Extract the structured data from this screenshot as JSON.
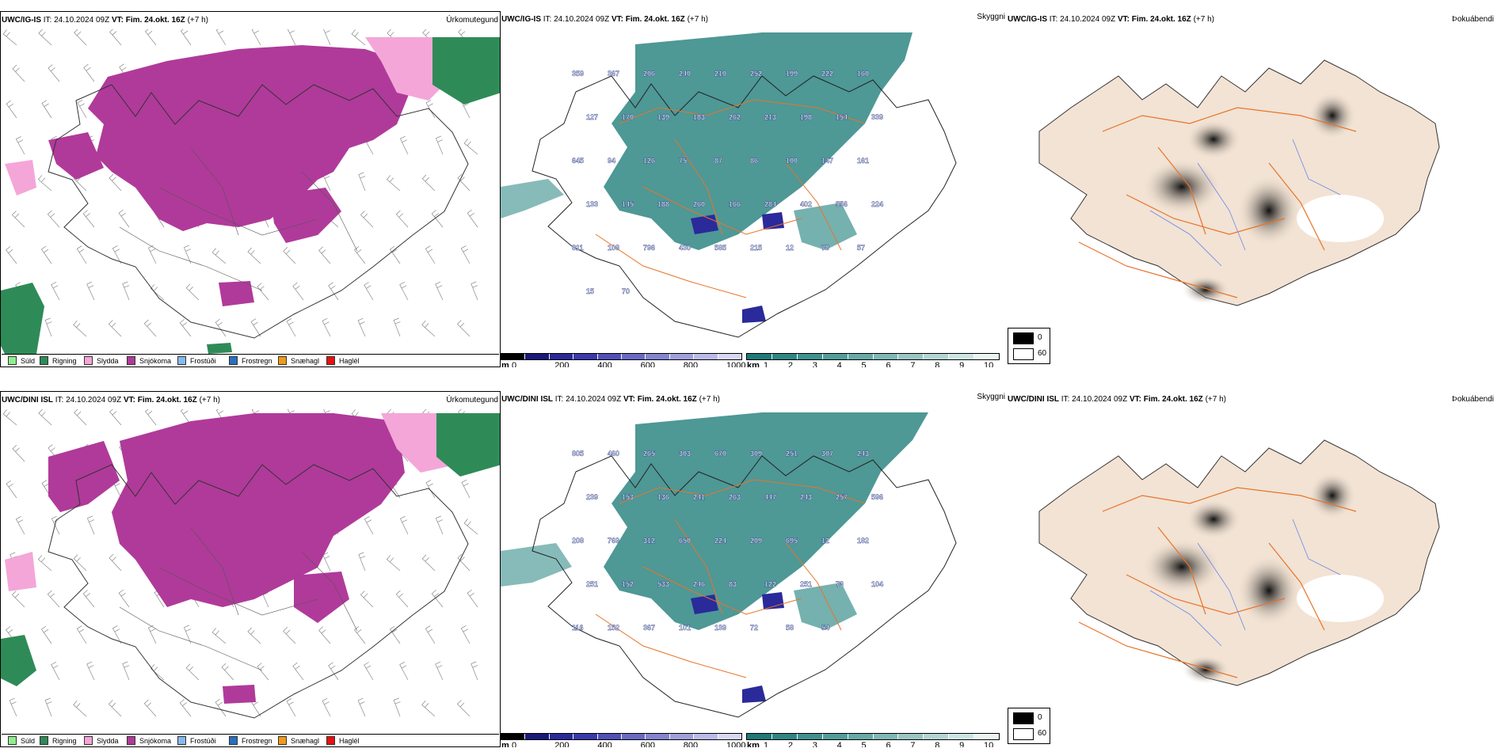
{
  "rows": [
    {
      "model": "UWC/IG-IS",
      "it_label": "IT:",
      "it_value": "24.10.2024 09Z",
      "vt_label": "VT:",
      "vt_value": "Fim. 24.okt. 16Z",
      "lead": "(+7 h)",
      "values": [
        "359",
        "367",
        "206",
        "240",
        "210",
        "252",
        "199",
        "222",
        "160",
        "127",
        "170",
        "139",
        "183",
        "262",
        "213",
        "198",
        "154",
        "339",
        "645",
        "94",
        "126",
        "75",
        "87",
        "86",
        "100",
        "147",
        "161",
        "133",
        "145",
        "188",
        "260",
        "166",
        "284",
        "402",
        "556",
        "224",
        "811",
        "108",
        "796",
        "430",
        "585",
        "215",
        "12",
        "78",
        "57",
        "15",
        "70"
      ]
    },
    {
      "model": "UWC/DINI ISL",
      "it_label": "IT:",
      "it_value": "24.10.2024 09Z",
      "vt_label": "VT:",
      "vt_value": "Fim. 24.okt. 16Z",
      "lead": "(+7 h)",
      "values": [
        "805",
        "460",
        "265",
        "303",
        "670",
        "309",
        "251",
        "307",
        "243",
        "239",
        "153",
        "136",
        "241",
        "263",
        "447",
        "243",
        "257",
        "596",
        "208",
        "769",
        "312",
        "650",
        "224",
        "209",
        "695",
        "12",
        "182",
        "251",
        "152",
        "533",
        "246",
        "83",
        "122",
        "251",
        "73",
        "104",
        "116",
        "152",
        "367",
        "101",
        "139",
        "72",
        "58",
        "54"
      ]
    }
  ],
  "panels": {
    "precip_title": "Úrkomutegund",
    "visibility_title": "Skyggni",
    "fog_title": "Þokuábendi"
  },
  "precip_legend": [
    {
      "label": "Súld",
      "color": "#90ee90"
    },
    {
      "label": "Rigning",
      "color": "#2e8b57"
    },
    {
      "label": "Slydda",
      "color": "#f4a6d8"
    },
    {
      "label": "Snjókoma",
      "color": "#b03a9a"
    },
    {
      "label": "Frostúði",
      "color": "#87b9ee"
    },
    {
      "label": "Frostregn",
      "color": "#2a6fbf"
    },
    {
      "label": "Snæhagl",
      "color": "#f09a1a"
    },
    {
      "label": "Haglél",
      "color": "#e81010"
    }
  ],
  "cloud_base_scale": {
    "unit": "m",
    "ticks": [
      "0",
      "200",
      "400",
      "600",
      "800",
      "1000"
    ],
    "colors": [
      "#000000",
      "#1a1a7a",
      "#2a2a9a",
      "#3a3aaa",
      "#5050b8",
      "#6a6ac4",
      "#8585d0",
      "#a0a0dc",
      "#bbbbe8",
      "#d8d8f4"
    ]
  },
  "visibility_scale": {
    "unit": "km",
    "ticks": [
      "1",
      "2",
      "3",
      "4",
      "5",
      "6",
      "7",
      "8",
      "9",
      "10"
    ],
    "colors": [
      "#1f7a78",
      "#2f8684",
      "#3f928f",
      "#529e9b",
      "#68aaa7",
      "#80b8b5",
      "#9ac6c3",
      "#b4d5d3",
      "#cfe5e3",
      "#eaf5f4"
    ]
  },
  "fog_scale": {
    "low": "0",
    "high": "60",
    "low_color": "#000000",
    "high_color": "#ffffff"
  },
  "colors": {
    "snow": "#b03a9a",
    "sleet": "#f4a6d8",
    "rain": "#2e8b57",
    "land_tan": "#f2e3d4",
    "road_orange": "#e8742a",
    "river_blue": "#6a86e8",
    "vis_teal": "#2f8684"
  }
}
